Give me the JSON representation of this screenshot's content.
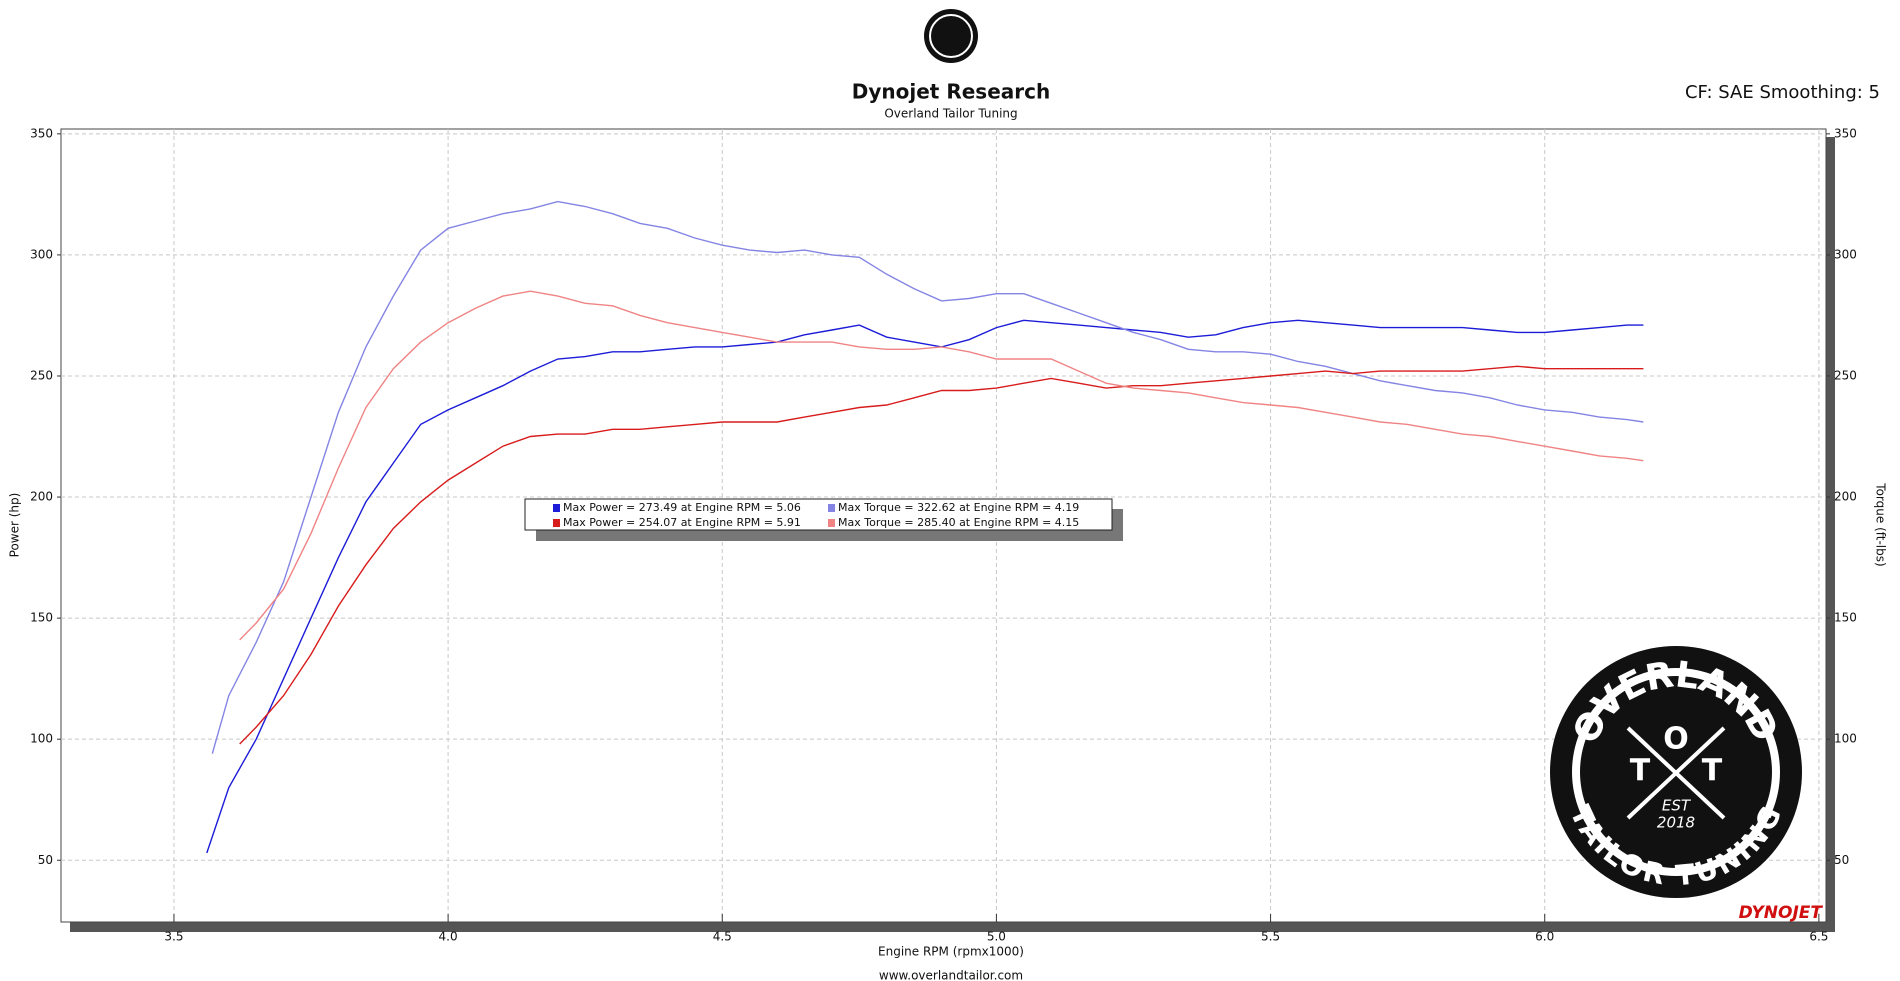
{
  "chart_data": {
    "type": "line",
    "title": "Dynojet Research",
    "subtitle": "Overland Tailor Tuning",
    "settings_text": "CF: SAE Smoothing: 5",
    "x_label": "Engine RPM (rpmx1000)",
    "y_label": "Power (hp)",
    "y2_label": "Torque (ft-lbs)",
    "footer": "www.overlandtailor.com",
    "brand": "DYNOJET",
    "logo": {
      "top": "OVERLAND",
      "letters": [
        "T",
        "O",
        "T"
      ],
      "bottom": "TAILOR TUNING",
      "est": "EST",
      "year": "2018"
    },
    "xlim": [
      3.294,
      6.513
    ],
    "xticks": [
      3.5,
      4.0,
      4.5,
      5.0,
      5.5,
      6.0,
      6.5
    ],
    "ylim": [
      24.5,
      352
    ],
    "yticks": [
      50,
      100,
      150,
      200,
      250,
      300,
      350
    ],
    "y2lim": [
      24.5,
      352
    ],
    "y2ticks": [
      50,
      100,
      150,
      200,
      250,
      300,
      350
    ],
    "grid": true,
    "series": [
      {
        "name": "Max Power = 273.49 at Engine RPM = 5.06",
        "color": "#1c1cd8",
        "x": [
          3.56,
          3.6,
          3.65,
          3.7,
          3.75,
          3.8,
          3.85,
          3.9,
          3.95,
          4.0,
          4.05,
          4.1,
          4.15,
          4.2,
          4.25,
          4.3,
          4.35,
          4.4,
          4.45,
          4.5,
          4.55,
          4.6,
          4.65,
          4.7,
          4.75,
          4.8,
          4.85,
          4.9,
          4.95,
          5.0,
          5.05,
          5.1,
          5.15,
          5.2,
          5.25,
          5.3,
          5.35,
          5.4,
          5.45,
          5.5,
          5.55,
          5.6,
          5.65,
          5.7,
          5.75,
          5.8,
          5.85,
          5.9,
          5.95,
          6.0,
          6.05,
          6.1,
          6.15,
          6.18
        ],
        "values": [
          53,
          80,
          100,
          125,
          150,
          175,
          198,
          214,
          230,
          236,
          241,
          246,
          252,
          257,
          258,
          260,
          260,
          261,
          262,
          262,
          263,
          264,
          267,
          269,
          271,
          266,
          264,
          262,
          265,
          270,
          273,
          272,
          271,
          270,
          269,
          268,
          266,
          267,
          270,
          272,
          273,
          272,
          271,
          270,
          270,
          270,
          270,
          269,
          268,
          268,
          269,
          270,
          271,
          271
        ]
      },
      {
        "name": "Max Torque = 322.62 at Engine RPM = 4.19",
        "color": "#8484e4",
        "axis": "y2",
        "x": [
          3.57,
          3.6,
          3.65,
          3.7,
          3.75,
          3.8,
          3.85,
          3.9,
          3.95,
          4.0,
          4.05,
          4.1,
          4.15,
          4.2,
          4.25,
          4.3,
          4.35,
          4.4,
          4.45,
          4.5,
          4.55,
          4.6,
          4.65,
          4.7,
          4.75,
          4.8,
          4.85,
          4.9,
          4.95,
          5.0,
          5.05,
          5.1,
          5.15,
          5.2,
          5.25,
          5.3,
          5.35,
          5.4,
          5.45,
          5.5,
          5.55,
          5.6,
          5.65,
          5.7,
          5.75,
          5.8,
          5.85,
          5.9,
          5.95,
          6.0,
          6.05,
          6.1,
          6.15,
          6.18
        ],
        "values": [
          94,
          118,
          140,
          165,
          200,
          235,
          262,
          283,
          302,
          311,
          314,
          317,
          319,
          322,
          320,
          317,
          313,
          311,
          307,
          304,
          302,
          301,
          302,
          300,
          299,
          292,
          286,
          281,
          282,
          284,
          284,
          280,
          276,
          272,
          268,
          265,
          261,
          260,
          260,
          259,
          256,
          254,
          251,
          248,
          246,
          244,
          243,
          241,
          238,
          236,
          235,
          233,
          232,
          231
        ]
      },
      {
        "name": "Max Power = 254.07 at Engine RPM = 5.91",
        "color": "#d81c1c",
        "x": [
          3.62,
          3.65,
          3.7,
          3.75,
          3.8,
          3.85,
          3.9,
          3.95,
          4.0,
          4.05,
          4.1,
          4.15,
          4.2,
          4.25,
          4.3,
          4.35,
          4.4,
          4.45,
          4.5,
          4.55,
          4.6,
          4.65,
          4.7,
          4.75,
          4.8,
          4.85,
          4.9,
          4.95,
          5.0,
          5.05,
          5.1,
          5.15,
          5.2,
          5.25,
          5.3,
          5.35,
          5.4,
          5.45,
          5.5,
          5.55,
          5.6,
          5.65,
          5.7,
          5.75,
          5.8,
          5.85,
          5.9,
          5.95,
          6.0,
          6.05,
          6.1,
          6.15,
          6.18
        ],
        "values": [
          98,
          105,
          118,
          135,
          155,
          172,
          187,
          198,
          207,
          214,
          221,
          225,
          226,
          226,
          228,
          228,
          229,
          230,
          231,
          231,
          231,
          233,
          235,
          237,
          238,
          241,
          244,
          244,
          245,
          247,
          249,
          247,
          245,
          246,
          246,
          247,
          248,
          249,
          250,
          251,
          252,
          251,
          252,
          252,
          252,
          252,
          253,
          254,
          253,
          253,
          253,
          253,
          253
        ]
      },
      {
        "name": "Max Torque = 285.40 at Engine RPM = 4.15",
        "color": "#f08484",
        "axis": "y2",
        "x": [
          3.62,
          3.65,
          3.7,
          3.75,
          3.8,
          3.85,
          3.9,
          3.95,
          4.0,
          4.05,
          4.1,
          4.15,
          4.2,
          4.25,
          4.3,
          4.35,
          4.4,
          4.45,
          4.5,
          4.55,
          4.6,
          4.65,
          4.7,
          4.75,
          4.8,
          4.85,
          4.9,
          4.95,
          5.0,
          5.05,
          5.1,
          5.15,
          5.2,
          5.25,
          5.3,
          5.35,
          5.4,
          5.45,
          5.5,
          5.55,
          5.6,
          5.65,
          5.7,
          5.75,
          5.8,
          5.85,
          5.9,
          5.95,
          6.0,
          6.05,
          6.1,
          6.15,
          6.18
        ],
        "values": [
          141,
          148,
          162,
          185,
          212,
          237,
          253,
          264,
          272,
          278,
          283,
          285,
          283,
          280,
          279,
          275,
          272,
          270,
          268,
          266,
          264,
          264,
          264,
          262,
          261,
          261,
          262,
          260,
          257,
          257,
          257,
          252,
          247,
          245,
          244,
          243,
          241,
          239,
          238,
          237,
          235,
          233,
          231,
          230,
          228,
          226,
          225,
          223,
          221,
          219,
          217,
          216,
          215
        ]
      }
    ]
  }
}
